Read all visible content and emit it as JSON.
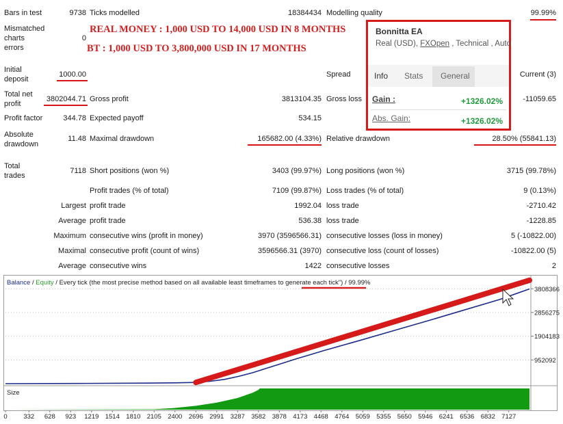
{
  "headlines": {
    "real_money": "REAL MONEY : 1,000 USD TO 14,000 USD IN 8 MONTHS",
    "backtest": "BT : 1,000 USD TO 3,800,000 USD IN 17 MONTHS"
  },
  "report": {
    "bars_in_test": {
      "label": "Bars in test",
      "value": "9738"
    },
    "ticks_modelled": {
      "label": "Ticks modelled",
      "value": "18384434"
    },
    "modelling_quality": {
      "label": "Modelling quality",
      "value": "99.99%"
    },
    "mismatched": {
      "label1": "Mismatched",
      "label2": "charts",
      "label3": "errors",
      "value": "0"
    },
    "initial_deposit": {
      "label1": "Initial",
      "label2": "deposit",
      "value": "1000.00"
    },
    "spread": {
      "label": "Spread",
      "value": "Current (3)"
    },
    "total_net_profit": {
      "label1": "Total net",
      "label2": "profit",
      "value": "3802044.71"
    },
    "gross_profit": {
      "label": "Gross profit",
      "value": "3813104.35"
    },
    "gross_loss": {
      "label": "Gross loss",
      "value": "-11059.65"
    },
    "profit_factor": {
      "label": "Profit factor",
      "value": "344.78"
    },
    "expected_payoff": {
      "label": "Expected payoff",
      "value": "534.15"
    },
    "absolute_drawdown": {
      "label1": "Absolute",
      "label2": "drawdown",
      "value": "11.48"
    },
    "maximal_drawdown": {
      "label": "Maximal drawdown",
      "value": "165682.00 (4.33%)"
    },
    "relative_drawdown": {
      "label": "Relative drawdown",
      "value": "28.50% (55841.13)"
    },
    "total_trades": {
      "label1": "Total",
      "label2": "trades",
      "value": "7118"
    },
    "short_positions": {
      "label": "Short positions (won %)",
      "value": "3403 (99.97%)"
    },
    "long_positions": {
      "label": "Long positions (won %)",
      "value": "3715 (99.78%)"
    },
    "profit_trades": {
      "label": "Profit trades (% of total)",
      "value": "7109 (99.87%)"
    },
    "loss_trades": {
      "label": "Loss trades (% of total)",
      "value": "9 (0.13%)"
    },
    "largest": {
      "label": "Largest",
      "profit_label": "profit trade",
      "profit_value": "1992.04",
      "loss_label": "loss trade",
      "loss_value": "-2710.42"
    },
    "average": {
      "label": "Average",
      "profit_label": "profit trade",
      "profit_value": "536.38",
      "loss_label": "loss trade",
      "loss_value": "-1228.85"
    },
    "maximum": {
      "label": "Maximum",
      "wins_label": "consecutive wins (profit in money)",
      "wins_value": "3970 (3596566.31)",
      "losses_label": "consecutive losses (loss in money)",
      "losses_value": "5 (-10822.00)"
    },
    "maximal": {
      "label": "Maximal",
      "wins_label": "consecutive profit (count of wins)",
      "wins_value": "3596566.31 (3970)",
      "losses_label": "consecutive loss (count of losses)",
      "losses_value": "-10822.00 (5)"
    },
    "average_consecutive": {
      "label": "Average",
      "wins_label": "consecutive wins",
      "wins_value": "1422",
      "losses_label": "consecutive losses",
      "losses_value": "2"
    }
  },
  "popup": {
    "title": "Bonnitta EA",
    "subtitle_prefix": "Real (USD), ",
    "subtitle_link": "FXOpen",
    "subtitle_suffix": " , Technical , Auto",
    "tabs": [
      {
        "label": "Info"
      },
      {
        "label": "Stats"
      },
      {
        "label": "General"
      }
    ],
    "gain_label": "Gain :",
    "gain_value": "+1326.02%",
    "abs_gain_label": "Abs. Gain:",
    "abs_gain_value": "+1326.02%"
  },
  "colors": {
    "highlight_red": "#d61a1a",
    "balance_line": "#1c2b8c",
    "equity_line": "#2a9a2a",
    "volume_fill": "#129a12",
    "gain_green": "#1f9a3a"
  },
  "chart_data": {
    "type": "line",
    "legend": {
      "balance": "Balance",
      "equity": "Equity"
    },
    "title_prefix": " / Every tick (the most precise method based on all available least timeframes to generate ",
    "title_highlight": "each tick",
    "title_suffix": "\") / 99.99%",
    "x_ticks": [
      0,
      332,
      628,
      923,
      1219,
      1514,
      1810,
      2105,
      2400,
      2696,
      2991,
      3287,
      3582,
      3878,
      4173,
      4468,
      4764,
      5059,
      5355,
      5650,
      5946,
      6241,
      6536,
      6832,
      7127
    ],
    "y_ticks": [
      952092,
      1904183,
      2856275,
      3808366
    ],
    "xlim": [
      0,
      7420
    ],
    "ylim": [
      0,
      4200000
    ],
    "series": [
      {
        "name": "Balance",
        "x": [
          0,
          1000,
          2000,
          2400,
          2696,
          2900,
          3100,
          3300,
          3500,
          3700,
          3900,
          4100,
          4300,
          4500,
          5000,
          5500,
          6000,
          6500,
          7000,
          7420
        ],
        "values": [
          1000,
          9000,
          22000,
          32000,
          50000,
          95000,
          170000,
          290000,
          440000,
          620000,
          800000,
          980000,
          1150000,
          1320000,
          1720000,
          2130000,
          2540000,
          2960000,
          3380000,
          3802044
        ]
      }
    ],
    "size_panel": {
      "label": "Size",
      "x": [
        0,
        2105,
        2400,
        2696,
        2991,
        3287,
        3500,
        3582,
        3600,
        7420
      ],
      "values": [
        0,
        0.02,
        0.08,
        0.18,
        0.33,
        0.55,
        0.8,
        0.93,
        1,
        1
      ]
    },
    "annotation_arrow": {
      "from": [
        2696,
        50000
      ],
      "to": [
        7420,
        4150000
      ]
    }
  }
}
